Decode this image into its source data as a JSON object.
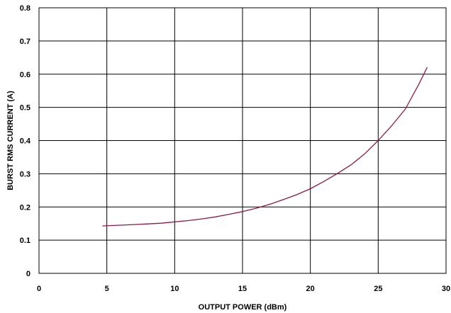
{
  "chart_data": {
    "type": "line",
    "title": "",
    "xlabel": "OUTPUT POWER (dBm)",
    "ylabel": "BURST RMS CURRENT (A)",
    "xlim": [
      0,
      30
    ],
    "ylim": [
      0,
      0.8
    ],
    "x_ticks": [
      0,
      5,
      10,
      15,
      20,
      25,
      30
    ],
    "y_ticks": [
      0,
      0.1,
      0.2,
      0.3,
      0.4,
      0.5,
      0.6,
      0.7,
      0.8
    ],
    "x_tick_labels": [
      "0",
      "5",
      "10",
      "15",
      "20",
      "25",
      "30"
    ],
    "y_tick_labels": [
      "0",
      "0.1",
      "0.2",
      "0.3",
      "0.4",
      "0.5",
      "0.6",
      "0.7",
      "0.8"
    ],
    "grid": true,
    "legend": "none",
    "series": [
      {
        "color": "#8B1A4A",
        "x": [
          4.7,
          6,
          7,
          8,
          9,
          10,
          11,
          12,
          13,
          14,
          15,
          16,
          17,
          18,
          19,
          20,
          21,
          22,
          23,
          24,
          25,
          26,
          27,
          28,
          28.6
        ],
        "y": [
          0.143,
          0.145,
          0.147,
          0.149,
          0.151,
          0.155,
          0.159,
          0.164,
          0.17,
          0.178,
          0.186,
          0.196,
          0.208,
          0.222,
          0.237,
          0.255,
          0.277,
          0.301,
          0.327,
          0.36,
          0.4,
          0.445,
          0.495,
          0.57,
          0.62
        ]
      }
    ]
  }
}
